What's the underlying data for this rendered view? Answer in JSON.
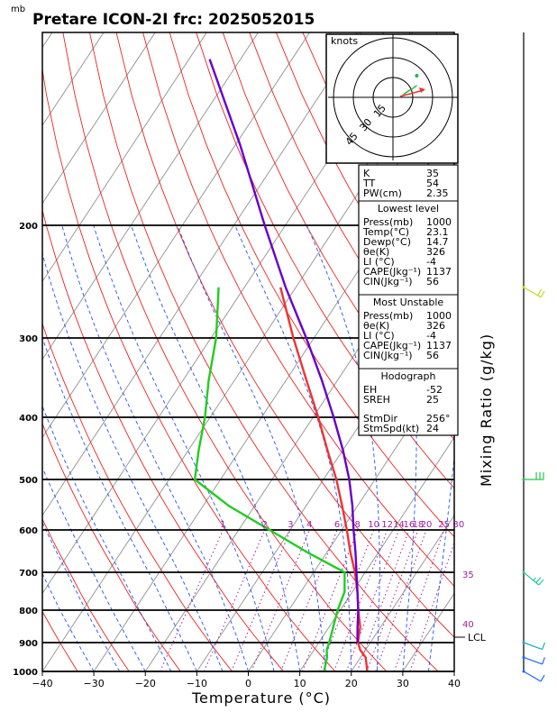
{
  "title": "Pretare ICON-2I frc: 2025052015",
  "unit_mb": "mb",
  "hodograph": {
    "units": "knots",
    "rings": [
      "15",
      "30",
      "45"
    ]
  },
  "indices": [
    {
      "k": "K",
      "v": "35"
    },
    {
      "k": "TT",
      "v": "54"
    },
    {
      "k": "PW(cm)",
      "v": "2.35"
    }
  ],
  "lowest_level": {
    "title": "Lowest level",
    "rows": [
      {
        "k": "Press(mb)",
        "v": "1000"
      },
      {
        "k": "Temp(°C)",
        "v": "23.1"
      },
      {
        "k": "Dewp(°C)",
        "v": "14.7"
      },
      {
        "k": "θe(K)",
        "v": "326"
      },
      {
        "k": "LI (°C)",
        "v": "-4"
      },
      {
        "k": "CAPE(Jkg⁻¹)",
        "v": "1137"
      },
      {
        "k": "CIN(Jkg⁻¹)",
        "v": "56"
      }
    ]
  },
  "most_unstable": {
    "title": "Most Unstable",
    "rows": [
      {
        "k": "Press(mb)",
        "v": "1000"
      },
      {
        "k": "θe(K)",
        "v": "326"
      },
      {
        "k": "LI (°C)",
        "v": "-4"
      },
      {
        "k": "CAPE(Jkg⁻¹)",
        "v": "1137"
      },
      {
        "k": "CIN(Jkg⁻¹)",
        "v": "56"
      }
    ]
  },
  "hodograph_box": {
    "title": "Hodograph",
    "rows": [
      {
        "k": "EH",
        "v": "-52"
      },
      {
        "k": "SREH",
        "v": "25"
      },
      {
        "k": "StmDir",
        "v": "256°"
      },
      {
        "k": "StmSpd(kt)",
        "v": "24"
      }
    ]
  },
  "side_label": "Mixing Ratio (g/kg)",
  "lcl_label": "LCL",
  "theta_e_labels": [
    "35",
    "40"
  ],
  "mixing_ratio_labels": [
    "1",
    "2",
    "3",
    "4",
    "6",
    "8",
    "10",
    "12",
    "14",
    "16",
    "18",
    "20",
    "25",
    "30"
  ],
  "chart_data": {
    "type": "line",
    "xlabel": "Temperature (°C)",
    "ylabel": "",
    "x_ticks": [
      "−40",
      "−30",
      "−20",
      "−10",
      "0",
      "10",
      "20",
      "30",
      "40"
    ],
    "xlim": [
      -40,
      40
    ],
    "ylim_mb": [
      1000,
      100
    ],
    "pressure_ticks": [
      "1000",
      "900",
      "800",
      "700",
      "600",
      "500",
      "400",
      "300",
      "200"
    ],
    "log_pressure": true,
    "grid": true,
    "series": [
      {
        "role": "temperature",
        "color": "#ee3333",
        "p": [
          1000,
          950,
          925,
          900,
          850,
          800,
          750,
          700,
          650,
          600,
          550,
          500,
          450,
          400,
          350,
          300,
          250
        ],
        "t": [
          23.1,
          21.0,
          19.0,
          17.6,
          16.0,
          13.5,
          11.0,
          8.0,
          4.5,
          1.0,
          -3.0,
          -7.5,
          -13.0,
          -19.0,
          -26.0,
          -34.0,
          -43.0
        ]
      },
      {
        "role": "dewpoint",
        "color": "#22cc22",
        "p": [
          1000,
          950,
          925,
          900,
          850,
          800,
          750,
          700,
          650,
          600,
          550,
          500,
          450,
          400,
          350,
          300,
          250
        ],
        "t": [
          14.7,
          13.5,
          12.5,
          12.0,
          10.8,
          9.5,
          8.5,
          6.0,
          -4.0,
          -14.0,
          -25.0,
          -35.0,
          -38.0,
          -41.0,
          -45.0,
          -49.0,
          -55.0
        ]
      },
      {
        "role": "parcel",
        "color": "#6600cc",
        "p": [
          900,
          850,
          800,
          750,
          700,
          650,
          600,
          550,
          500,
          450,
          400,
          350,
          300,
          250,
          200,
          150,
          110
        ],
        "t": [
          17.5,
          15.5,
          13.5,
          11.0,
          8.3,
          5.5,
          2.3,
          -1.0,
          -5.0,
          -10.0,
          -16.0,
          -23.0,
          -31.5,
          -42.0,
          -54.0,
          -69.0,
          -86.0
        ]
      }
    ],
    "wind_barbs": [
      {
        "p": 1000,
        "dir": 240,
        "spd_kt": 10,
        "color": "#1a66ff"
      },
      {
        "p": 950,
        "dir": 250,
        "spd_kt": 10,
        "color": "#1a66ff"
      },
      {
        "p": 900,
        "dir": 250,
        "spd_kt": 10,
        "color": "#1aaacc"
      },
      {
        "p": 700,
        "dir": 230,
        "spd_kt": 15,
        "color": "#22cc99"
      },
      {
        "p": 500,
        "dir": 270,
        "spd_kt": 30,
        "color": "#22cc44"
      },
      {
        "p": 250,
        "dir": 240,
        "spd_kt": 20,
        "color": "#bbdd22"
      }
    ],
    "hodograph_trace": {
      "u": [
        7,
        9,
        12,
        14,
        18
      ],
      "v": [
        1,
        3,
        5,
        6,
        9
      ]
    }
  }
}
